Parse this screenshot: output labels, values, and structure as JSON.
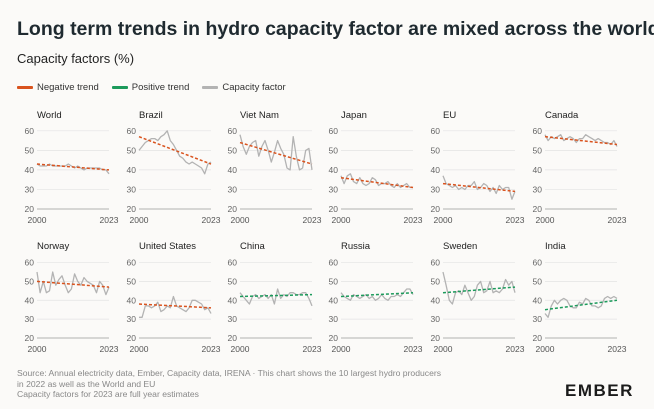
{
  "title": "Long term trends in hydro capacity factor are mixed across the world",
  "subtitle": "Capacity factors (%)",
  "legend": [
    {
      "label": "Negative trend",
      "color": "#d9531e"
    },
    {
      "label": "Positive trend",
      "color": "#1c9a5b"
    },
    {
      "label": "Capacity factor",
      "color": "#b3b3b3"
    }
  ],
  "source": {
    "line1": "Source: Annual electricity data, Ember, Capacity data, IRENA · This chart shows the 10 largest hydro producers",
    "line2": "in 2022 as well as the World and EU",
    "line3": "Capacity factors for 2023 are full year estimates"
  },
  "logo": "EMBER",
  "chart_data": {
    "type": "line",
    "y_ticks": [
      20,
      30,
      40,
      50,
      60
    ],
    "ylim": [
      20,
      64
    ],
    "x_tick_labels": [
      "2000",
      "2023"
    ],
    "panels": [
      {
        "name": "World",
        "trend": "negative",
        "trend_line": [
          43,
          40
        ],
        "series": [
          {
            "name": "Capacity factor",
            "x": [
              2000,
              2001,
              2002,
              2003,
              2004,
              2005,
              2006,
              2007,
              2008,
              2009,
              2010,
              2011,
              2012,
              2013,
              2014,
              2015,
              2016,
              2017,
              2018,
              2019,
              2020,
              2021,
              2022,
              2023
            ],
            "values": [
              43,
              42,
              42,
              42,
              43,
              42,
              42,
              42,
              42,
              42,
              43,
              42,
              41,
              42,
              41,
              40,
              41,
              41,
              41,
              41,
              41,
              40,
              40,
              38
            ]
          }
        ]
      },
      {
        "name": "Brazil",
        "trend": "negative",
        "trend_line": [
          57,
          43
        ],
        "series": [
          {
            "name": "Capacity factor",
            "x": [
              2000,
              2001,
              2002,
              2003,
              2004,
              2005,
              2006,
              2007,
              2008,
              2009,
              2010,
              2011,
              2012,
              2013,
              2014,
              2015,
              2016,
              2017,
              2018,
              2019,
              2020,
              2021,
              2022,
              2023
            ],
            "values": [
              50,
              52,
              54,
              55,
              56,
              56,
              55,
              57,
              58,
              60,
              55,
              53,
              50,
              47,
              46,
              44,
              43,
              44,
              43,
              42,
              41,
              38,
              43,
              44
            ]
          }
        ]
      },
      {
        "name": "Viet Nam",
        "trend": "negative",
        "trend_line": [
          54,
          43
        ],
        "series": [
          {
            "name": "Capacity factor",
            "x": [
              2000,
              2001,
              2002,
              2003,
              2004,
              2005,
              2006,
              2007,
              2008,
              2009,
              2010,
              2011,
              2012,
              2013,
              2014,
              2015,
              2016,
              2017,
              2018,
              2019,
              2020,
              2021,
              2022,
              2023
            ],
            "values": [
              58,
              52,
              48,
              52,
              54,
              55,
              47,
              52,
              55,
              50,
              44,
              49,
              55,
              51,
              48,
              41,
              40,
              57,
              47,
              40,
              41,
              50,
              51,
              40
            ]
          }
        ]
      },
      {
        "name": "Japan",
        "trend": "negative",
        "trend_line": [
          36,
          31
        ],
        "series": [
          {
            "name": "Capacity factor",
            "x": [
              2000,
              2001,
              2002,
              2003,
              2004,
              2005,
              2006,
              2007,
              2008,
              2009,
              2010,
              2011,
              2012,
              2013,
              2014,
              2015,
              2016,
              2017,
              2018,
              2019,
              2020,
              2021,
              2022,
              2023
            ],
            "values": [
              37,
              33,
              37,
              38,
              34,
              33,
              36,
              33,
              32,
              33,
              36,
              35,
              32,
              33,
              33,
              34,
              32,
              31,
              33,
              31,
              32,
              33,
              31,
              31
            ]
          }
        ]
      },
      {
        "name": "EU",
        "trend": "negative",
        "trend_line": [
          33,
          29
        ],
        "series": [
          {
            "name": "Capacity factor",
            "x": [
              2000,
              2001,
              2002,
              2003,
              2004,
              2005,
              2006,
              2007,
              2008,
              2009,
              2010,
              2011,
              2012,
              2013,
              2014,
              2015,
              2016,
              2017,
              2018,
              2019,
              2020,
              2021,
              2022,
              2023
            ],
            "values": [
              37,
              33,
              32,
              31,
              32,
              30,
              31,
              30,
              32,
              32,
              34,
              30,
              31,
              33,
              32,
              29,
              31,
              28,
              32,
              30,
              31,
              31,
              25,
              29
            ]
          }
        ]
      },
      {
        "name": "Canada",
        "trend": "negative",
        "trend_line": [
          57,
          53
        ],
        "series": [
          {
            "name": "Capacity factor",
            "x": [
              2000,
              2001,
              2002,
              2003,
              2004,
              2005,
              2006,
              2007,
              2008,
              2009,
              2010,
              2011,
              2012,
              2013,
              2014,
              2015,
              2016,
              2017,
              2018,
              2019,
              2020,
              2021,
              2022,
              2023
            ],
            "values": [
              58,
              55,
              57,
              56,
              57,
              58,
              55,
              56,
              57,
              56,
              54,
              56,
              56,
              58,
              57,
              56,
              55,
              56,
              55,
              54,
              54,
              53,
              55,
              52
            ]
          }
        ]
      },
      {
        "name": "Norway",
        "trend": "negative",
        "trend_line": [
          50,
          47
        ],
        "series": [
          {
            "name": "Capacity factor",
            "x": [
              2000,
              2001,
              2002,
              2003,
              2004,
              2005,
              2006,
              2007,
              2008,
              2009,
              2010,
              2011,
              2012,
              2013,
              2014,
              2015,
              2016,
              2017,
              2018,
              2019,
              2020,
              2021,
              2022,
              2023
            ],
            "values": [
              55,
              44,
              50,
              44,
              45,
              55,
              48,
              51,
              53,
              48,
              44,
              46,
              54,
              50,
              48,
              52,
              50,
              49,
              48,
              44,
              50,
              48,
              43,
              47
            ]
          }
        ]
      },
      {
        "name": "United States",
        "trend": "negative",
        "trend_line": [
          38,
          36
        ],
        "series": [
          {
            "name": "Capacity factor",
            "x": [
              2000,
              2001,
              2002,
              2003,
              2004,
              2005,
              2006,
              2007,
              2008,
              2009,
              2010,
              2011,
              2012,
              2013,
              2014,
              2015,
              2016,
              2017,
              2018,
              2019,
              2020,
              2021,
              2022,
              2023
            ],
            "values": [
              31,
              31,
              37,
              37,
              36,
              37,
              39,
              34,
              35,
              37,
              36,
              42,
              37,
              36,
              35,
              34,
              36,
              40,
              40,
              39,
              38,
              35,
              36,
              33
            ]
          }
        ]
      },
      {
        "name": "China",
        "trend": "positive",
        "trend_line": [
          42,
          43
        ],
        "series": [
          {
            "name": "Capacity factor",
            "x": [
              2000,
              2001,
              2002,
              2003,
              2004,
              2005,
              2006,
              2007,
              2008,
              2009,
              2010,
              2011,
              2012,
              2013,
              2014,
              2015,
              2016,
              2017,
              2018,
              2019,
              2020,
              2021,
              2022,
              2023
            ],
            "values": [
              44,
              42,
              40,
              38,
              42,
              43,
              41,
              42,
              43,
              41,
              43,
              38,
              46,
              41,
              43,
              42,
              44,
              44,
              43,
              43,
              44,
              44,
              41,
              37
            ]
          }
        ]
      },
      {
        "name": "Russia",
        "trend": "positive",
        "trend_line": [
          42,
          44
        ],
        "series": [
          {
            "name": "Capacity factor",
            "x": [
              2000,
              2001,
              2002,
              2003,
              2004,
              2005,
              2006,
              2007,
              2008,
              2009,
              2010,
              2011,
              2012,
              2013,
              2014,
              2015,
              2016,
              2017,
              2018,
              2019,
              2020,
              2021,
              2022,
              2023
            ],
            "values": [
              44,
              42,
              41,
              40,
              43,
              42,
              41,
              42,
              43,
              41,
              42,
              40,
              41,
              43,
              41,
              40,
              42,
              42,
              43,
              42,
              44,
              46,
              46,
              43
            ]
          }
        ]
      },
      {
        "name": "Sweden",
        "trend": "positive",
        "trend_line": [
          44,
          47
        ],
        "series": [
          {
            "name": "Capacity factor",
            "x": [
              2000,
              2001,
              2002,
              2003,
              2004,
              2005,
              2006,
              2007,
              2008,
              2009,
              2010,
              2011,
              2012,
              2013,
              2014,
              2015,
              2016,
              2017,
              2018,
              2019,
              2020,
              2021,
              2022,
              2023
            ],
            "values": [
              55,
              48,
              40,
              38,
              44,
              45,
              43,
              48,
              44,
              40,
              42,
              48,
              50,
              44,
              45,
              50,
              44,
              45,
              44,
              46,
              51,
              48,
              50,
              44
            ]
          }
        ]
      },
      {
        "name": "India",
        "trend": "positive",
        "trend_line": [
          35,
          40
        ],
        "series": [
          {
            "name": "Capacity factor",
            "x": [
              2000,
              2001,
              2002,
              2003,
              2004,
              2005,
              2006,
              2007,
              2008,
              2009,
              2010,
              2011,
              2012,
              2013,
              2014,
              2015,
              2016,
              2017,
              2018,
              2019,
              2020,
              2021,
              2022,
              2023
            ],
            "values": [
              33,
              31,
              37,
              40,
              38,
              40,
              41,
              40,
              37,
              36,
              36,
              39,
              38,
              41,
              40,
              37,
              37,
              36,
              37,
              41,
              42,
              41,
              42,
              41
            ]
          }
        ]
      }
    ]
  }
}
